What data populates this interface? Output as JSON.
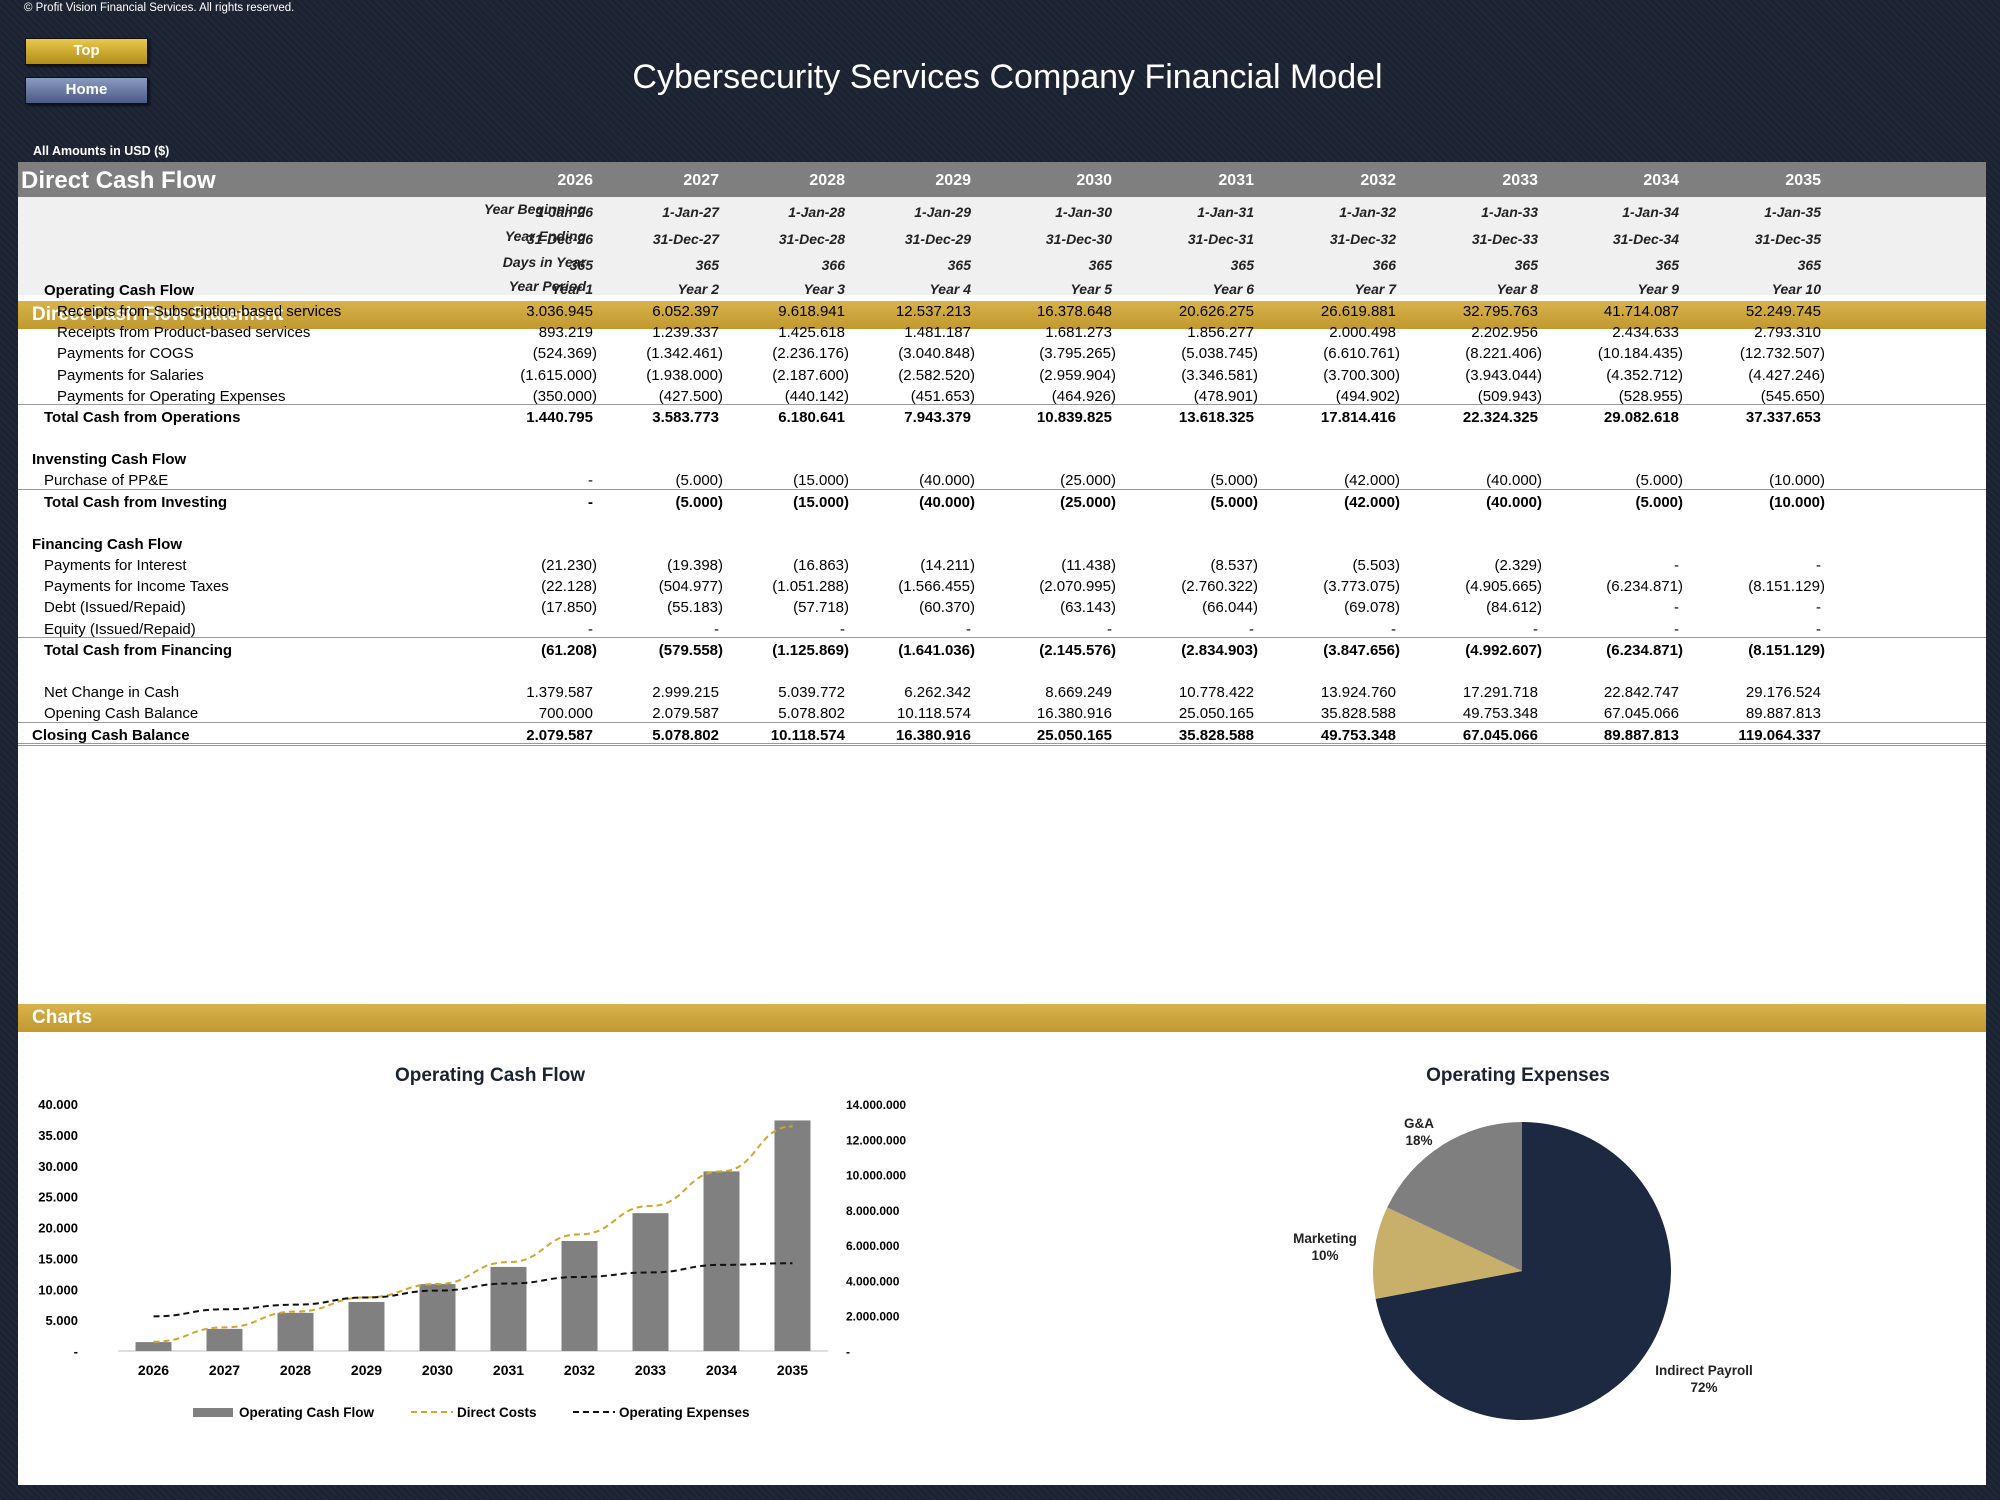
{
  "copyright": "© Profit Vision Financial Services. All rights reserved.",
  "buttons": {
    "top": "Top",
    "home": "Home"
  },
  "title": "Cybersecurity Services Company Financial Model",
  "currency_note": "All Amounts in  USD ($)",
  "header": {
    "title": "Direct Cash Flow",
    "years": [
      "2026",
      "2027",
      "2028",
      "2029",
      "2030",
      "2031",
      "2032",
      "2033",
      "2034",
      "2035"
    ]
  },
  "meta": [
    {
      "label": "Year Beginning",
      "values": [
        "1-Jan-26",
        "1-Jan-27",
        "1-Jan-28",
        "1-Jan-29",
        "1-Jan-30",
        "1-Jan-31",
        "1-Jan-32",
        "1-Jan-33",
        "1-Jan-34",
        "1-Jan-35"
      ]
    },
    {
      "label": "Year Ending",
      "values": [
        "31-Dec-26",
        "31-Dec-27",
        "31-Dec-28",
        "31-Dec-29",
        "31-Dec-30",
        "31-Dec-31",
        "31-Dec-32",
        "31-Dec-33",
        "31-Dec-34",
        "31-Dec-35"
      ]
    },
    {
      "label": "Days in Year",
      "values": [
        "365",
        "365",
        "366",
        "365",
        "365",
        "365",
        "366",
        "365",
        "365",
        "365"
      ]
    },
    {
      "label": "Year Period",
      "values": [
        "Year 1",
        "Year 2",
        "Year 3",
        "Year 4",
        "Year 5",
        "Year 6",
        "Year 7",
        "Year 8",
        "Year 9",
        "Year 10"
      ]
    }
  ],
  "statement_title": "Direct Cash Flow Statement",
  "operating": {
    "title": "Operating Cash Flow",
    "rows": [
      {
        "label": "Receipts from Subscription-based services",
        "values": [
          "3.036.945",
          "6.052.397",
          "9.618.941",
          "12.537.213",
          "16.378.648",
          "20.626.275",
          "26.619.881",
          "32.795.763",
          "41.714.087",
          "52.249.745"
        ]
      },
      {
        "label": "Receipts from Product-based services",
        "values": [
          "893.219",
          "1.239.337",
          "1.425.618",
          "1.481.187",
          "1.681.273",
          "1.856.277",
          "2.000.498",
          "2.202.956",
          "2.434.633",
          "2.793.310"
        ]
      },
      {
        "label": "Payments for COGS",
        "values": [
          "(524.369)",
          "(1.342.461)",
          "(2.236.176)",
          "(3.040.848)",
          "(3.795.265)",
          "(5.038.745)",
          "(6.610.761)",
          "(8.221.406)",
          "(10.184.435)",
          "(12.732.507)"
        ]
      },
      {
        "label": "Payments for Salaries",
        "values": [
          "(1.615.000)",
          "(1.938.000)",
          "(2.187.600)",
          "(2.582.520)",
          "(2.959.904)",
          "(3.346.581)",
          "(3.700.300)",
          "(3.943.044)",
          "(4.352.712)",
          "(4.427.246)"
        ]
      },
      {
        "label": "Payments for Operating Expenses",
        "values": [
          "(350.000)",
          "(427.500)",
          "(440.142)",
          "(451.653)",
          "(464.926)",
          "(478.901)",
          "(494.902)",
          "(509.943)",
          "(528.955)",
          "(545.650)"
        ]
      }
    ],
    "total": {
      "label": "Total Cash from Operations",
      "values": [
        "1.440.795",
        "3.583.773",
        "6.180.641",
        "7.943.379",
        "10.839.825",
        "13.618.325",
        "17.814.416",
        "22.324.325",
        "29.082.618",
        "37.337.653"
      ]
    }
  },
  "investing": {
    "title": "Invensting Cash Flow",
    "rows": [
      {
        "label": "Purchase of PP&E",
        "values": [
          "-",
          "(5.000)",
          "(15.000)",
          "(40.000)",
          "(25.000)",
          "(5.000)",
          "(42.000)",
          "(40.000)",
          "(5.000)",
          "(10.000)"
        ]
      }
    ],
    "total": {
      "label": "Total Cash from Investing",
      "values": [
        "-",
        "(5.000)",
        "(15.000)",
        "(40.000)",
        "(25.000)",
        "(5.000)",
        "(42.000)",
        "(40.000)",
        "(5.000)",
        "(10.000)"
      ]
    }
  },
  "financing": {
    "title": "Financing Cash Flow",
    "rows": [
      {
        "label": "Payments for Interest",
        "values": [
          "(21.230)",
          "(19.398)",
          "(16.863)",
          "(14.211)",
          "(11.438)",
          "(8.537)",
          "(5.503)",
          "(2.329)",
          "-",
          "-"
        ]
      },
      {
        "label": "Payments for Income Taxes",
        "values": [
          "(22.128)",
          "(504.977)",
          "(1.051.288)",
          "(1.566.455)",
          "(2.070.995)",
          "(2.760.322)",
          "(3.773.075)",
          "(4.905.665)",
          "(6.234.871)",
          "(8.151.129)"
        ]
      },
      {
        "label": "Debt (Issued/Repaid)",
        "values": [
          "(17.850)",
          "(55.183)",
          "(57.718)",
          "(60.370)",
          "(63.143)",
          "(66.044)",
          "(69.078)",
          "(84.612)",
          "-",
          "-"
        ]
      },
      {
        "label": "Equity (Issued/Repaid)",
        "values": [
          "-",
          "-",
          "-",
          "-",
          "-",
          "-",
          "-",
          "-",
          "-",
          "-"
        ]
      }
    ],
    "total": {
      "label": "Total Cash from Financing",
      "values": [
        "(61.208)",
        "(579.558)",
        "(1.125.869)",
        "(1.641.036)",
        "(2.145.576)",
        "(2.834.903)",
        "(3.847.656)",
        "(4.992.607)",
        "(6.234.871)",
        "(8.151.129)"
      ]
    }
  },
  "net_change": {
    "label": "Net Change in Cash",
    "values": [
      "1.379.587",
      "2.999.215",
      "5.039.772",
      "6.262.342",
      "8.669.249",
      "10.778.422",
      "13.924.760",
      "17.291.718",
      "22.842.747",
      "29.176.524"
    ]
  },
  "opening": {
    "label": "Opening Cash Balance",
    "values": [
      "700.000",
      "2.079.587",
      "5.078.802",
      "10.118.574",
      "16.380.916",
      "25.050.165",
      "35.828.588",
      "49.753.348",
      "67.045.066",
      "89.887.813"
    ]
  },
  "closing": {
    "label": "Closing Cash Balance",
    "values": [
      "2.079.587",
      "5.078.802",
      "10.118.574",
      "16.380.916",
      "25.050.165",
      "35.828.588",
      "49.753.348",
      "67.045.066",
      "89.887.813",
      "119.064.337"
    ]
  },
  "charts_title": "Charts",
  "chart_data": [
    {
      "type": "bar",
      "title": "Operating Cash Flow",
      "categories": [
        "2026",
        "2027",
        "2028",
        "2029",
        "2030",
        "2031",
        "2032",
        "2033",
        "2034",
        "2035"
      ],
      "left_axis_ticks": [
        "40.000",
        "35.000",
        "30.000",
        "25.000",
        "20.000",
        "15.000",
        "10.000",
        "5.000",
        "-"
      ],
      "right_axis_ticks": [
        "14.000.000",
        "12.000.000",
        "10.000.000",
        "8.000.000",
        "6.000.000",
        "4.000.000",
        "2.000.000",
        "-"
      ],
      "ylim_left": [
        0,
        40000
      ],
      "ylim_right": [
        0,
        14000000
      ],
      "series": [
        {
          "name": "Operating Cash Flow",
          "kind": "bar",
          "axis": "left",
          "color": "#808080",
          "values": [
            1441,
            3584,
            6181,
            7943,
            10840,
            13618,
            17814,
            22324,
            29083,
            37338
          ]
        },
        {
          "name": "Direct Costs",
          "kind": "dashed-line",
          "axis": "right",
          "color": "#d4a52a",
          "values": [
            524369,
            1342461,
            2236176,
            3040848,
            3795265,
            5038745,
            6610761,
            8221406,
            10184435,
            12732507
          ]
        },
        {
          "name": "Operating Expenses",
          "kind": "dashed-line",
          "axis": "right",
          "color": "#111111",
          "values": [
            1965000,
            2365500,
            2627742,
            3034173,
            3424830,
            3825482,
            4195202,
            4452987,
            4881667,
            4972896
          ]
        }
      ],
      "legend": "bottom"
    },
    {
      "type": "pie",
      "title": "Operating Expenses",
      "slices": [
        {
          "label": "Indirect Payroll",
          "pct_label": "72%",
          "value": 72,
          "color": "#1c2940"
        },
        {
          "label": "Marketing",
          "pct_label": "10%",
          "value": 10,
          "color": "#c8b06a"
        },
        {
          "label": "G&A",
          "pct_label": "18%",
          "value": 18,
          "color": "#7f7f7f"
        }
      ]
    }
  ]
}
